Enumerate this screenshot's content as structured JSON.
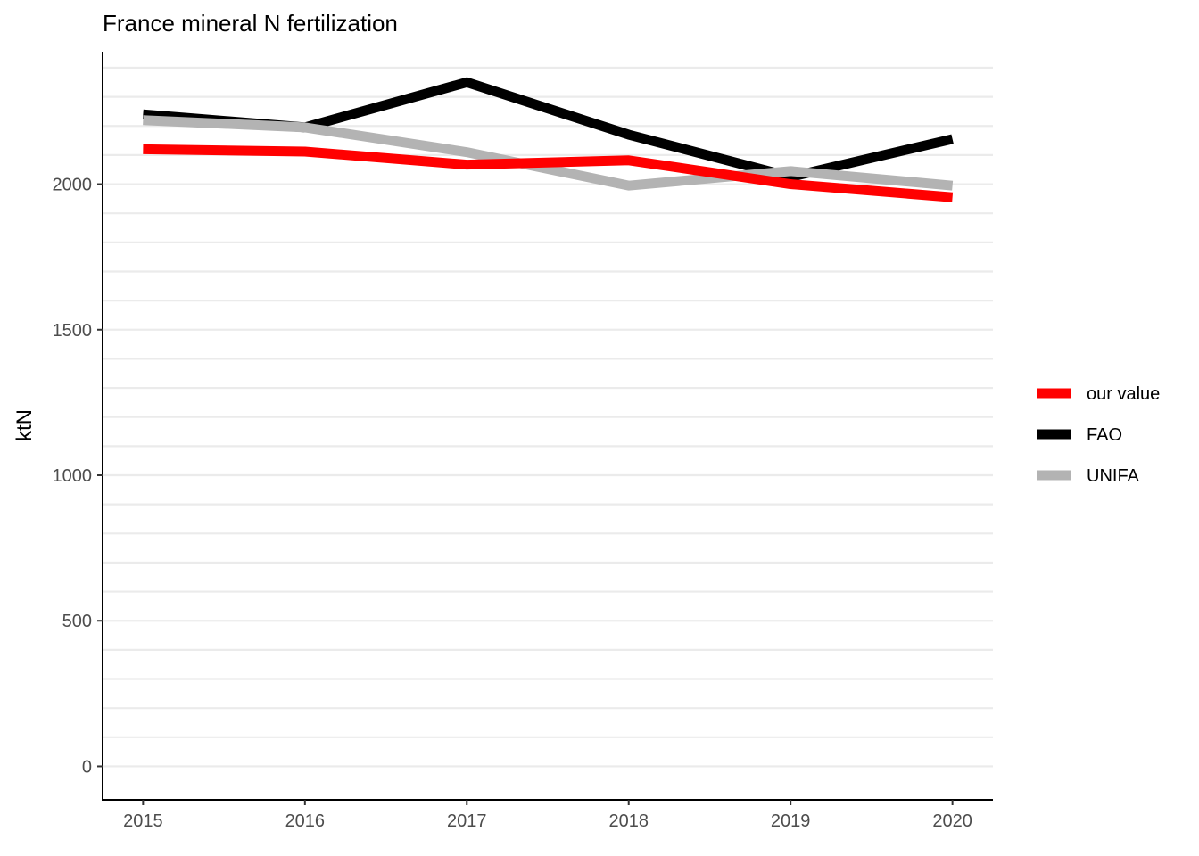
{
  "chart_data": {
    "type": "line",
    "title": "France mineral N fertilization",
    "xlabel": "",
    "ylabel": "ktN",
    "x": [
      2015,
      2016,
      2017,
      2018,
      2019,
      2020
    ],
    "xlim": [
      2014.75,
      2020.25
    ],
    "ylim": [
      -115,
      2455
    ],
    "yticks": [
      0,
      500,
      1000,
      1500,
      2000
    ],
    "minor_grid_step": 100,
    "grid": "horizontal",
    "legend_position": "right",
    "series": [
      {
        "name": "our value",
        "color": "#ff0000",
        "values": [
          2120,
          2112,
          2067,
          2082,
          2000,
          1955
        ]
      },
      {
        "name": "FAO",
        "color": "#000000",
        "values": [
          2240,
          2195,
          2350,
          2170,
          2025,
          2155
        ]
      },
      {
        "name": "UNIFA",
        "color": "#b3b3b3",
        "values": [
          2220,
          2195,
          2110,
          1995,
          2045,
          1995
        ]
      }
    ]
  }
}
